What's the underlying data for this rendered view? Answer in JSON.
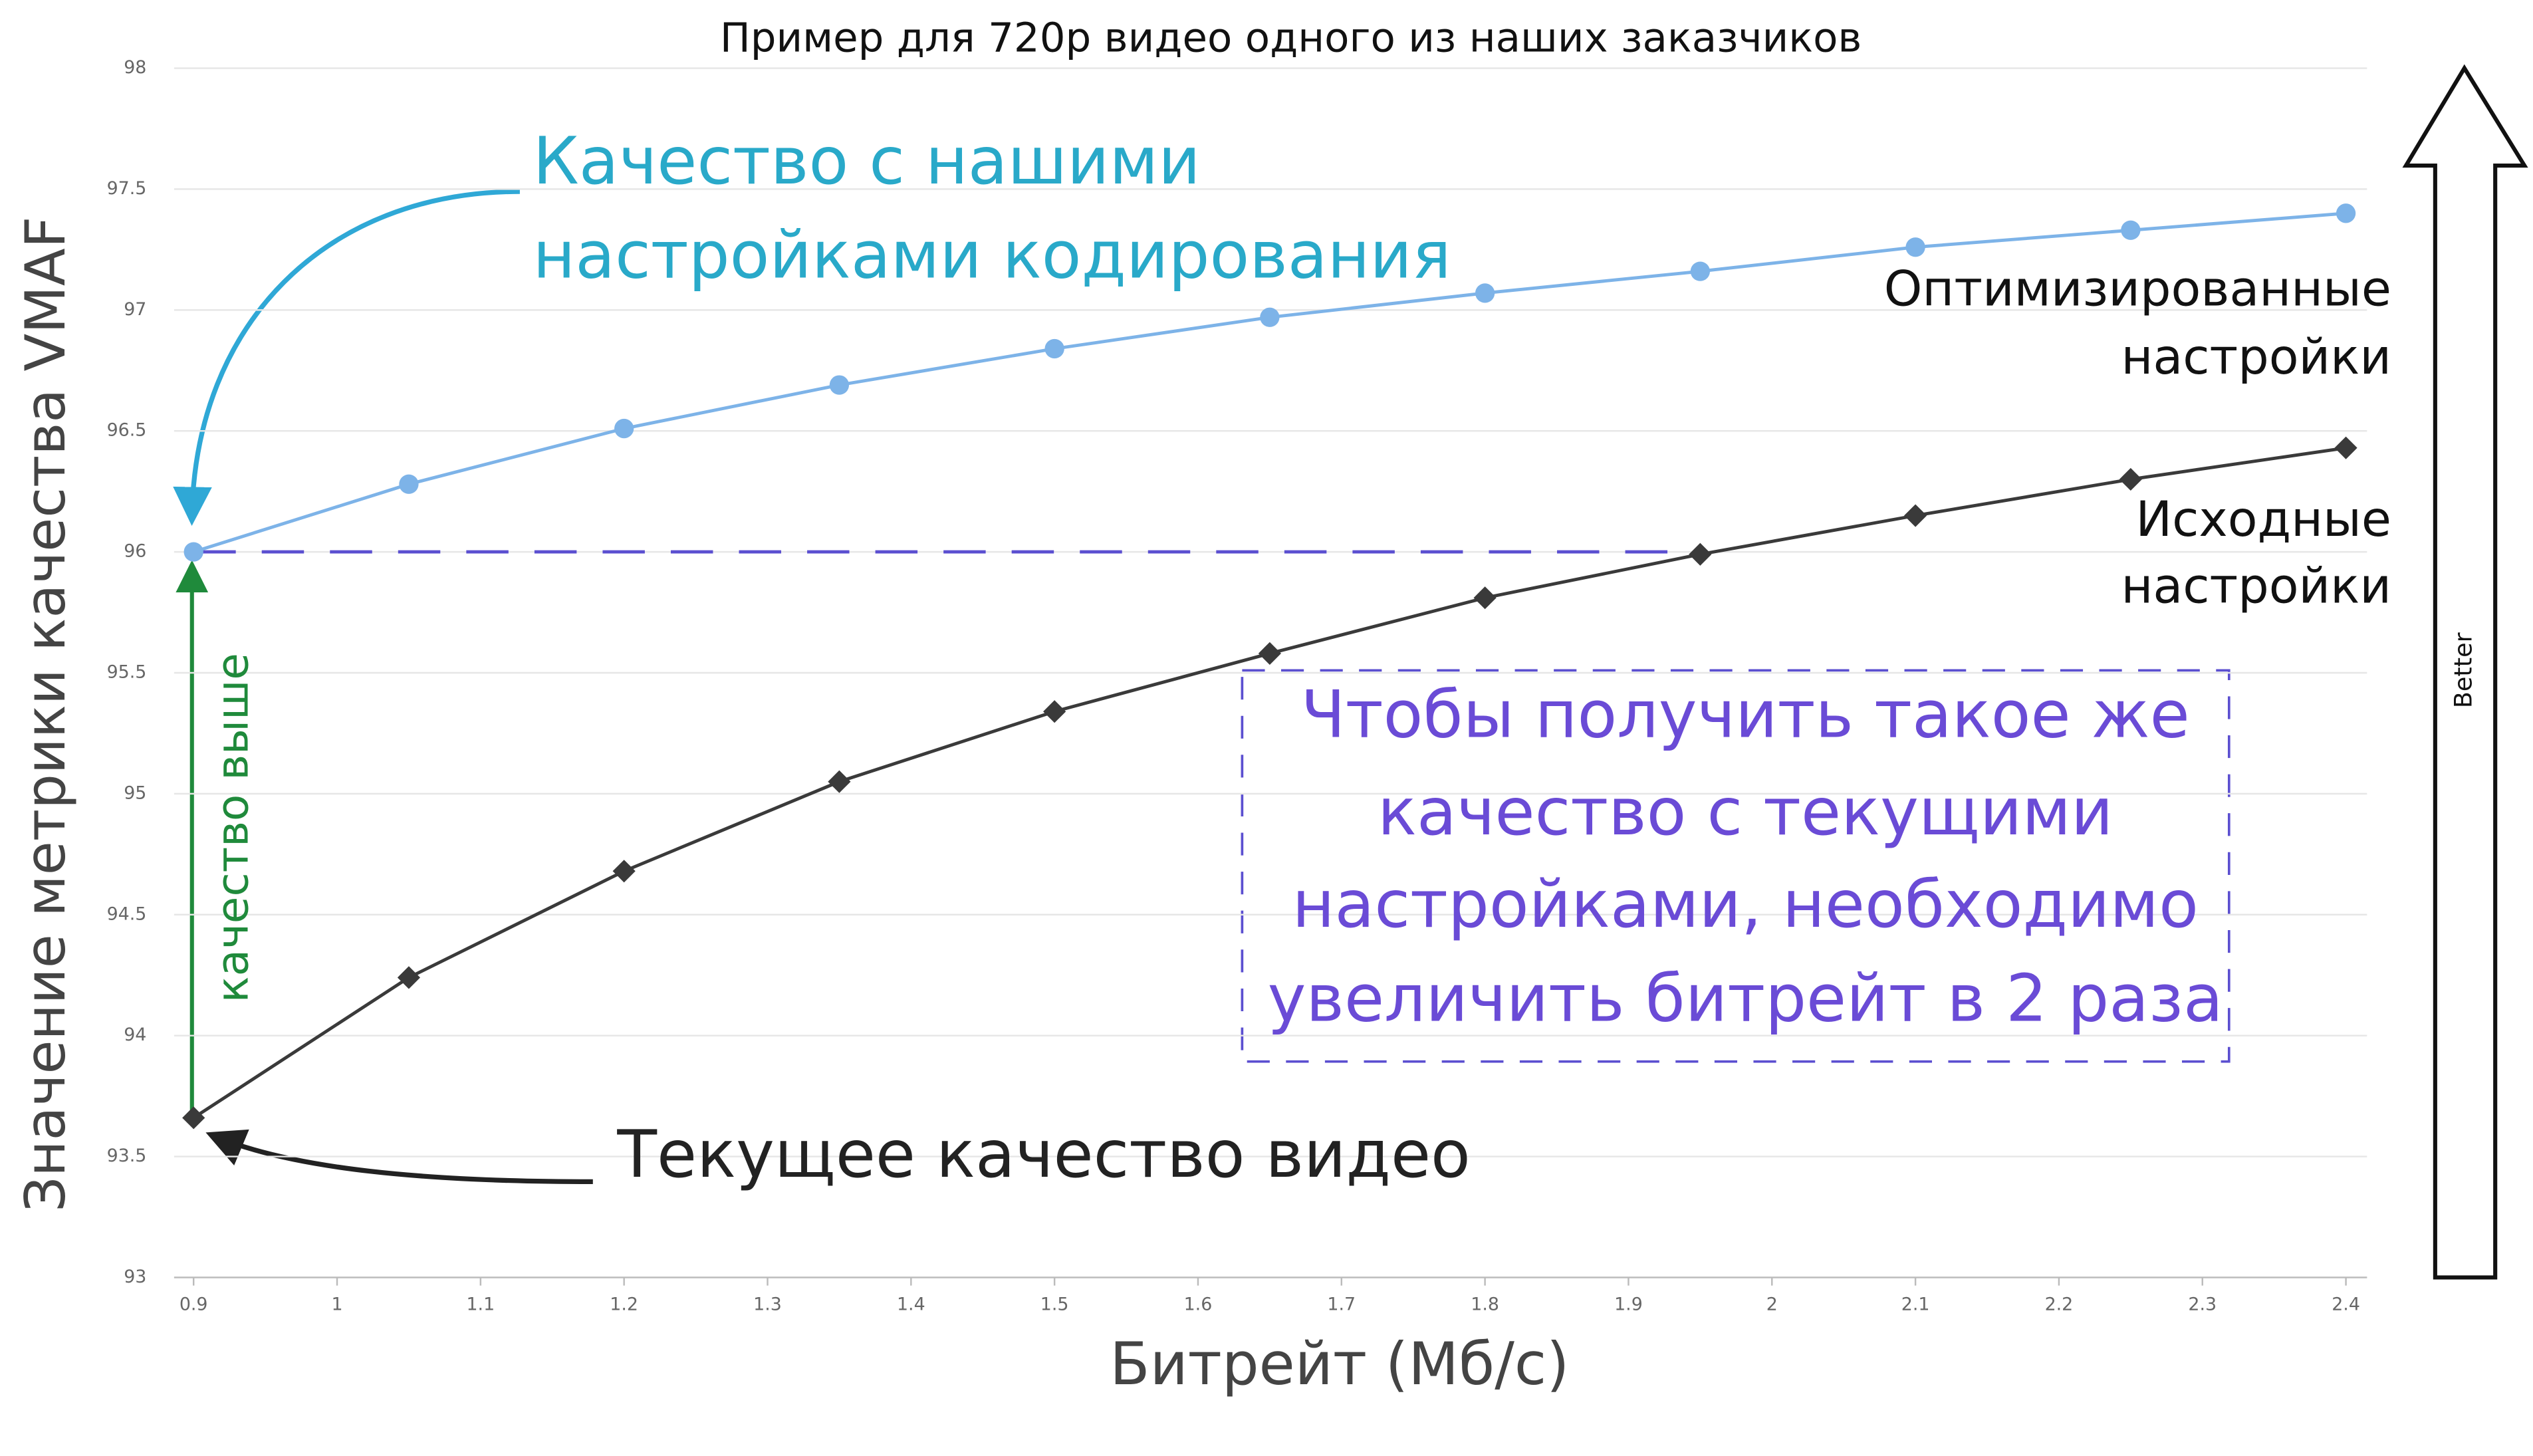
{
  "chart_data": {
    "type": "line",
    "title": "Пример для 720p видео одного из наших заказчиков",
    "ylabel": "Значение метрики качества VMAF",
    "xlabel": "Битрейт (Мб/с)",
    "x": [
      0.9,
      1.05,
      1.2,
      1.35,
      1.5,
      1.65,
      1.8,
      1.95,
      2.1,
      2.25,
      2.4
    ],
    "series": [
      {
        "name": [
          "Оптимизированные",
          "настройки"
        ],
        "color": "#7db3e8",
        "marker": "circle",
        "values": [
          96.0,
          96.28,
          96.51,
          96.69,
          96.84,
          96.97,
          97.07,
          97.16,
          97.26,
          97.33,
          97.4
        ]
      },
      {
        "name": [
          "Исходные",
          "настройки"
        ],
        "color": "#3a3a3a",
        "marker": "diamond",
        "values": [
          93.66,
          94.24,
          94.68,
          95.05,
          95.34,
          95.58,
          95.81,
          95.99,
          96.15,
          96.3,
          96.43
        ]
      }
    ],
    "xlim": [
      0.9,
      2.4
    ],
    "ylim": [
      93,
      98
    ],
    "xticks": [
      0.9,
      1,
      1.1,
      1.2,
      1.3,
      1.4,
      1.5,
      1.6,
      1.7,
      1.8,
      1.9,
      2,
      2.1,
      2.2,
      2.3,
      2.4
    ],
    "yticks": [
      93,
      93.5,
      94,
      94.5,
      95,
      95.5,
      96,
      96.5,
      97,
      97.5,
      98
    ],
    "grid": true,
    "reference_line": {
      "value": 96,
      "x": [
        0.9,
        1.95
      ],
      "color": "#5b4fd0"
    },
    "annotations": {
      "ours": [
        "Качество с нашими",
        "настройками кодирования"
      ],
      "higher": "качество выше",
      "current": "Текущее качество видео",
      "box": [
        "Чтобы получить такое же",
        "качество с текущими",
        "настройками, необходимо",
        "увеличить битрейт в 2 раза"
      ],
      "better": "Better"
    }
  }
}
